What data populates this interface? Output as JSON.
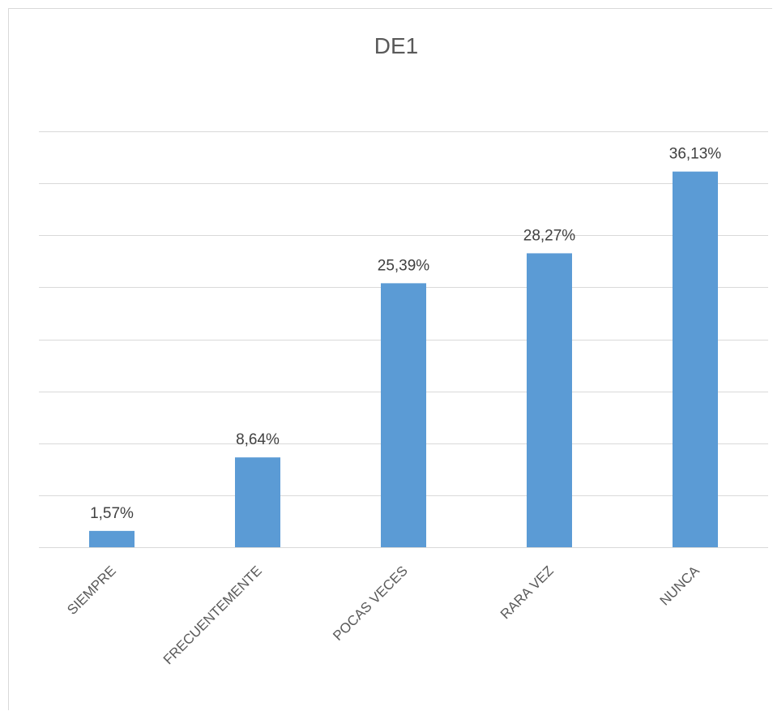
{
  "chart_data": {
    "type": "bar",
    "title": "DE1",
    "categories": [
      "SIEMPRE",
      "FRECUENTEMENTE",
      "POCAS VECES",
      "RARA VEZ",
      "NUNCA"
    ],
    "values": [
      1.57,
      8.64,
      25.39,
      28.27,
      36.13
    ],
    "data_labels": [
      "1,57%",
      "8,64%",
      "25,39%",
      "28,27%",
      "36,13%"
    ],
    "ylim": [
      0,
      40
    ],
    "y_tick_step": 5,
    "grid": true,
    "legend": "none",
    "bar_color": "#5b9bd5"
  }
}
